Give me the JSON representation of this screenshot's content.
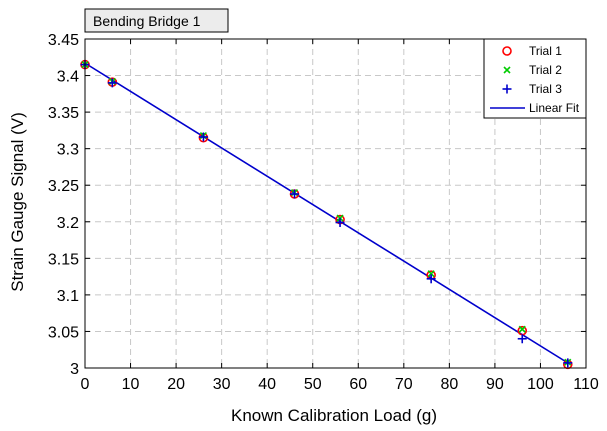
{
  "chart_data": {
    "type": "scatter",
    "title": "Bending Bridge 1",
    "xlabel": "Known Calibration Load (g)",
    "ylabel": "Strain Gauge Signal (V)",
    "xlim": [
      0,
      110
    ],
    "ylim": [
      3.0,
      3.45
    ],
    "xticks": [
      0,
      10,
      20,
      30,
      40,
      50,
      60,
      70,
      80,
      90,
      100,
      110
    ],
    "xtick_labels": [
      "0",
      "10",
      "20",
      "30",
      "40",
      "50",
      "60",
      "70",
      "80",
      "90",
      "100",
      "110"
    ],
    "yticks": [
      3.0,
      3.05,
      3.1,
      3.15,
      3.2,
      3.25,
      3.3,
      3.35,
      3.4,
      3.45
    ],
    "ytick_labels": [
      "3",
      "3.05",
      "3.1",
      "3.15",
      "3.2",
      "3.25",
      "3.3",
      "3.35",
      "3.4",
      "3.45"
    ],
    "grid": true,
    "legend_position": "top-right",
    "series": [
      {
        "name": "Trial 1",
        "kind": "scatter",
        "marker": "circle",
        "color": "#ff0000",
        "x": [
          0,
          6,
          26,
          46,
          56,
          76,
          96,
          106
        ],
        "y": [
          3.415,
          3.391,
          3.315,
          3.238,
          3.203,
          3.127,
          3.051,
          3.005
        ]
      },
      {
        "name": "Trial 2",
        "kind": "scatter",
        "marker": "x",
        "color": "#00cc00",
        "x": [
          0,
          6,
          26,
          46,
          56,
          76,
          96,
          106
        ],
        "y": [
          3.415,
          3.392,
          3.318,
          3.24,
          3.205,
          3.129,
          3.053,
          3.008
        ]
      },
      {
        "name": "Trial 3",
        "kind": "scatter",
        "marker": "plus",
        "color": "#0000cc",
        "x": [
          0,
          6,
          26,
          46,
          56,
          76,
          96,
          106
        ],
        "y": [
          3.415,
          3.39,
          3.316,
          3.238,
          3.199,
          3.122,
          3.04,
          3.007
        ]
      },
      {
        "name": "Linear Fit",
        "kind": "line",
        "color": "#0000cc",
        "x": [
          0,
          106
        ],
        "y": [
          3.417,
          3.007
        ]
      }
    ]
  }
}
